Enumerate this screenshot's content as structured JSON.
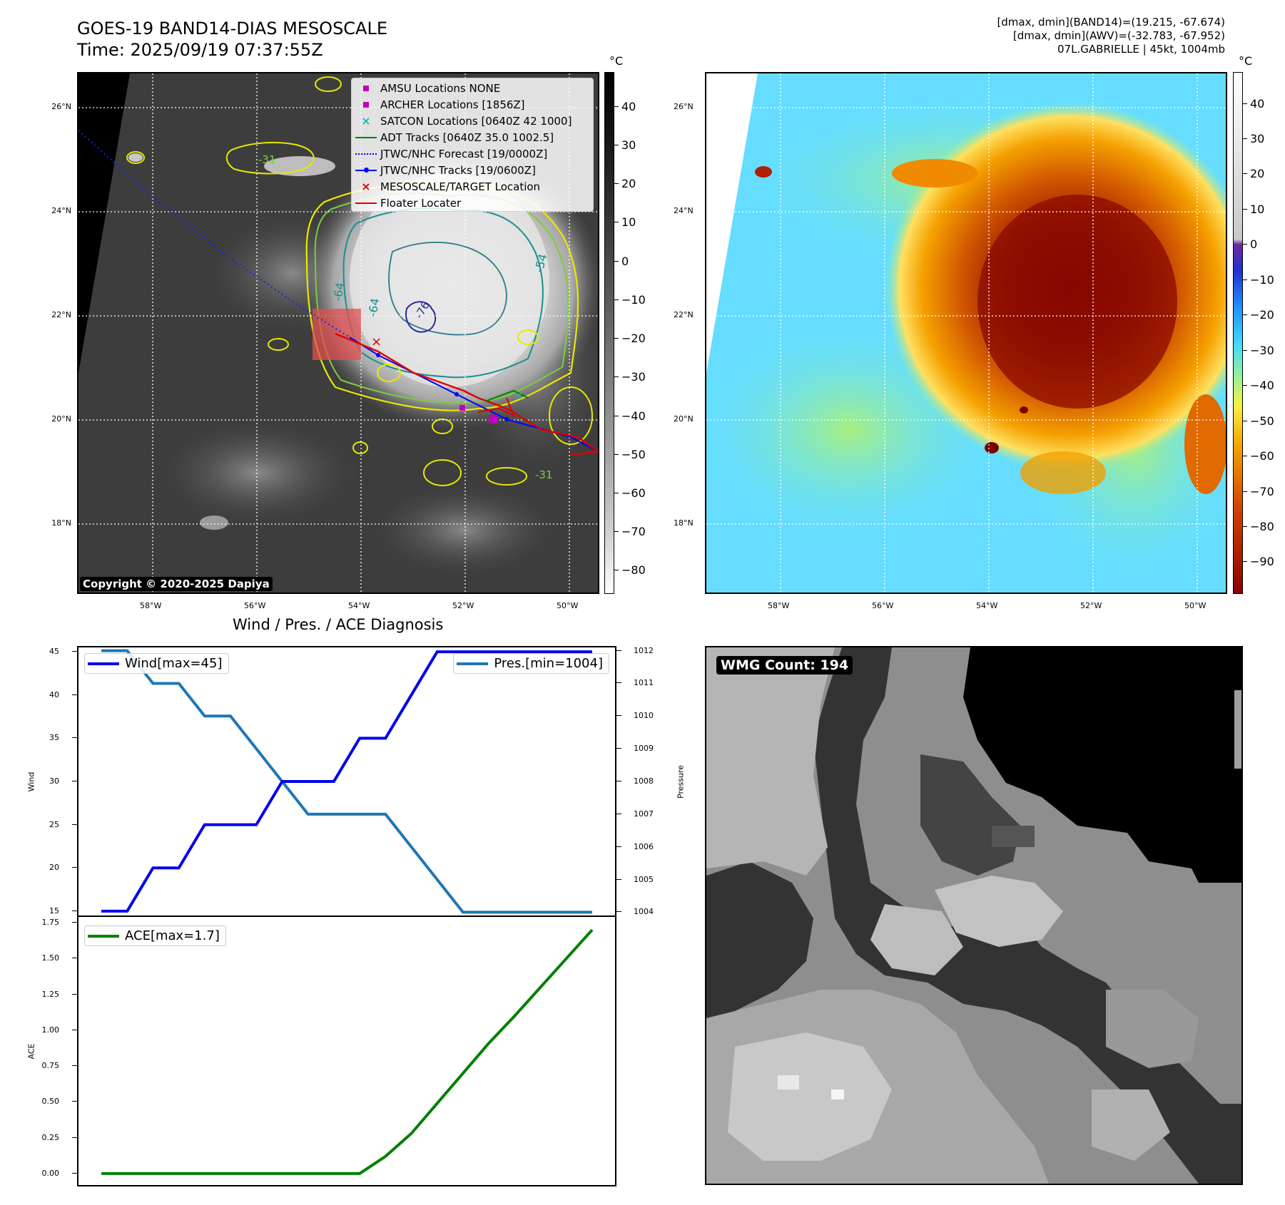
{
  "header": {
    "title": "GOES-19 BAND14-DIAS MESOSCALE",
    "time": "Time: 2025/09/19 07:37:55Z",
    "info_line1": "[dmax, dmin](BAND14)=(19.215, -67.674)",
    "info_line2": "[dmax, dmin](AWV)=(-32.783, -67.952)",
    "info_line3": "07L.GABRIELLE | 45kt, 1004mb"
  },
  "map": {
    "lat_labels": [
      "26°N",
      "24°N",
      "22°N",
      "20°N",
      "18°N"
    ],
    "lon_labels": [
      "58°W",
      "56°W",
      "54°W",
      "52°W",
      "50°W"
    ],
    "colorbar_unit": "°C",
    "band14_ticks": [
      "40",
      "30",
      "20",
      "10",
      "0",
      "−10",
      "−20",
      "−30",
      "−40",
      "−50",
      "−60",
      "−70",
      "−80"
    ],
    "awv_ticks": [
      "40",
      "30",
      "20",
      "10",
      "0",
      "−10",
      "−20",
      "−30",
      "−40",
      "−50",
      "−60",
      "−70",
      "−80",
      "−90"
    ],
    "copyright": "Copyright © 2020-2025 Dapiya",
    "contour_labels": [
      "-64",
      "-64",
      "-54",
      "-31",
      "-31",
      "-76"
    ],
    "legend": [
      {
        "label": "AMSU Locations NONE",
        "symbol": "square",
        "color": "#c000c0"
      },
      {
        "label": "ARCHER Locations [1856Z]",
        "symbol": "square",
        "color": "#c000c0"
      },
      {
        "label": "SATCON Locations [0640Z 42 1000]",
        "symbol": "x",
        "color": "#1fb8b8"
      },
      {
        "label": "ADT Tracks [0640Z 35.0 1002.5]",
        "symbol": "line",
        "color": "#008000"
      },
      {
        "label": "JTWC/NHC Forecast [19/0000Z]",
        "symbol": "dotted",
        "color": "#0000ff"
      },
      {
        "label": "JTWC/NHC Tracks [19/0600Z]",
        "symbol": "line-dot",
        "color": "#0000ff"
      },
      {
        "label": "MESOSCALE/TARGET Location",
        "symbol": "x",
        "color": "#e00000"
      },
      {
        "label": "Floater Locater",
        "symbol": "line",
        "color": "#e00000"
      }
    ]
  },
  "diagnosis": {
    "title": "Wind / Pres. / ACE Diagnosis",
    "wind_ylabel": "Wind",
    "pressure_ylabel": "Pressure",
    "ace_ylabel": "ACE",
    "wind_legend": "Wind[max=45]",
    "pres_legend": "Pres.[min=1004]",
    "ace_legend": "ACE[max=1.7]",
    "wind_ticks": [
      "45",
      "40",
      "35",
      "30",
      "25",
      "20",
      "15"
    ],
    "pres_ticks": [
      "1012",
      "1011",
      "1010",
      "1009",
      "1008",
      "1007",
      "1006",
      "1005",
      "1004"
    ],
    "ace_ticks": [
      "1.75",
      "1.50",
      "1.25",
      "1.00",
      "0.75",
      "0.50",
      "0.25",
      "0.00"
    ]
  },
  "chart_data": [
    {
      "type": "line",
      "title": "Wind / Pres. / ACE Diagnosis",
      "x": [
        0,
        1,
        2,
        3,
        4,
        5,
        6,
        7,
        8,
        9,
        10,
        11,
        12,
        13,
        14,
        15,
        16,
        17,
        18,
        19
      ],
      "series": [
        {
          "name": "Wind[max=45]",
          "axis": "left",
          "color": "#0000ee",
          "values": [
            15,
            15,
            20,
            20,
            25,
            25,
            25,
            30,
            30,
            30,
            35,
            35,
            40,
            45,
            45,
            45,
            45,
            45,
            45,
            45
          ]
        },
        {
          "name": "Pres.[min=1004]",
          "axis": "right",
          "color": "#1f77b4",
          "values": [
            1012,
            1012,
            1011,
            1011,
            1010,
            1010,
            1009,
            1008,
            1007,
            1007,
            1007,
            1007,
            1006,
            1005,
            1004,
            1004,
            1004,
            1004,
            1004,
            1004
          ]
        }
      ],
      "ylabel": "Wind",
      "ylim": [
        14.5,
        45.5
      ],
      "y2label": "Pressure",
      "y2lim": [
        1003.9,
        1012.1
      ],
      "legend": "top-left / top-right"
    },
    {
      "type": "line",
      "x": [
        0,
        1,
        2,
        3,
        4,
        5,
        6,
        7,
        8,
        9,
        10,
        11,
        12,
        13,
        14,
        15,
        16,
        17,
        18,
        19
      ],
      "series": [
        {
          "name": "ACE[max=1.7]",
          "color": "#008000",
          "values": [
            0,
            0,
            0,
            0,
            0,
            0,
            0,
            0,
            0,
            0,
            0,
            0.12,
            0.28,
            0.49,
            0.7,
            0.91,
            1.1,
            1.3,
            1.5,
            1.7
          ]
        }
      ],
      "ylabel": "ACE",
      "ylim": [
        -0.08,
        1.79
      ],
      "legend": "top-left"
    }
  ],
  "wmg": {
    "label": "WMG Count: 194"
  }
}
